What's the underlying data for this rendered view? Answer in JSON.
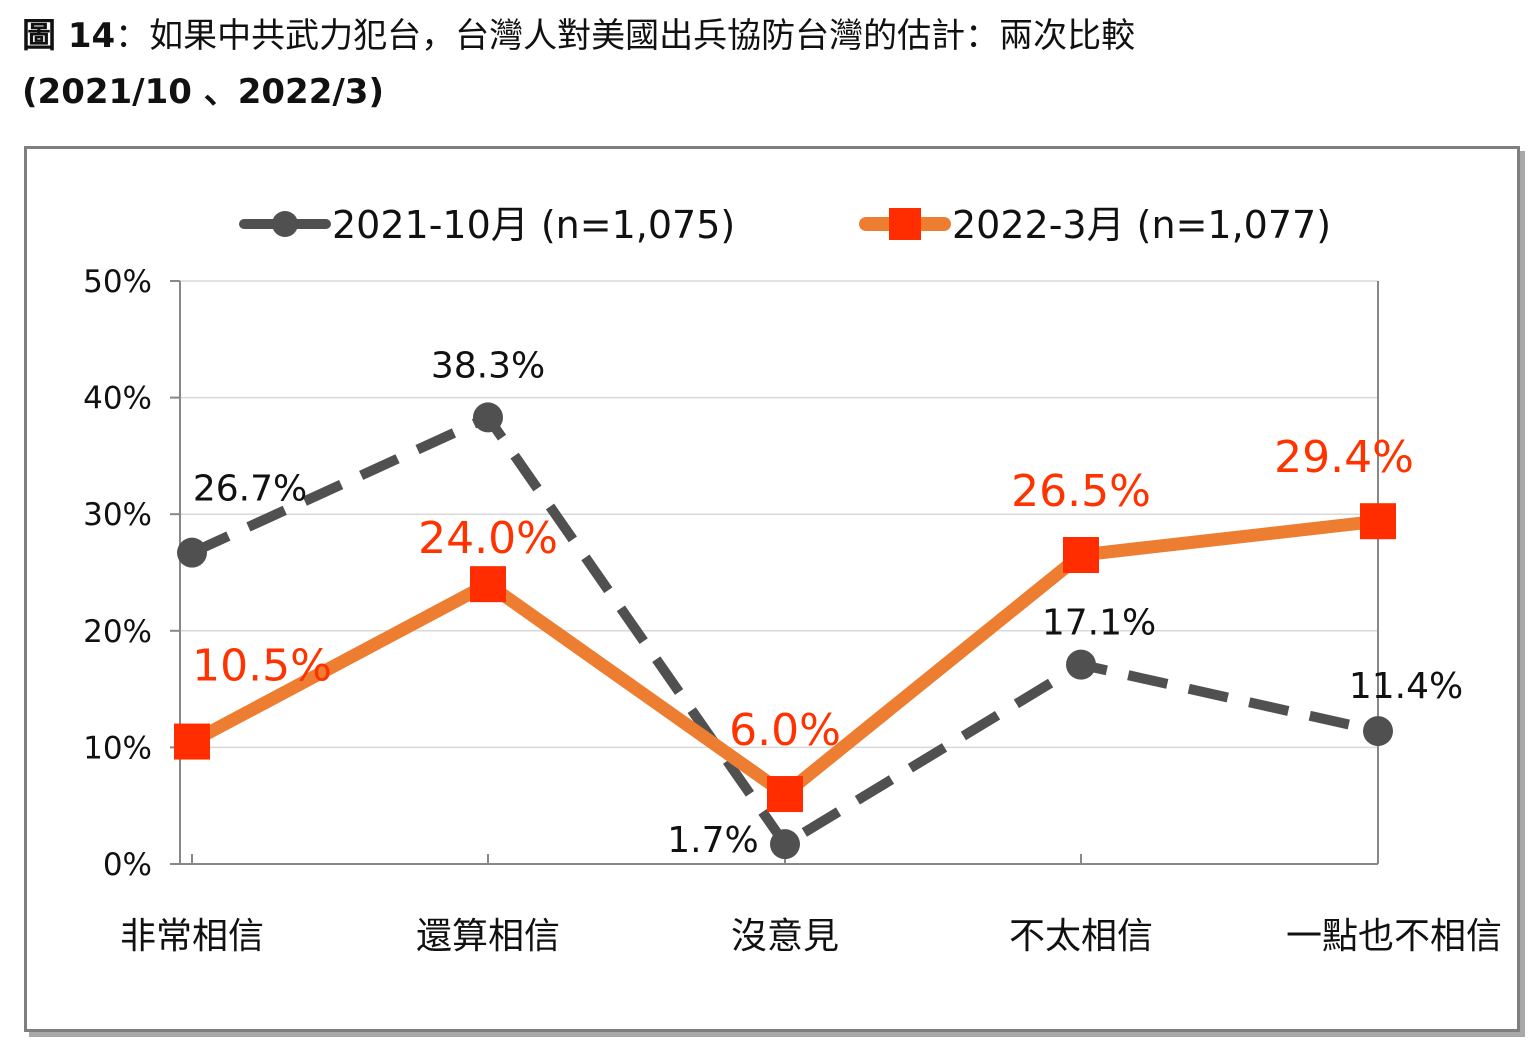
{
  "title": {
    "prefix": "圖 14",
    "text": "：如果中共武力犯台，台灣人對美國出兵協防台灣的估計：兩次比較",
    "dates": "(2021/10 、2022/3)"
  },
  "colors": {
    "series_2021": "#505050",
    "series_2022_line": "#ed7d31",
    "series_2022_marker": "#ff2d00",
    "series_2022_label": "#ff3300",
    "grid": "#d9d9d9",
    "axis": "#888888"
  },
  "chart_data": {
    "type": "line",
    "title": "如果中共武力犯台，台灣人對美國出兵協防台灣的估計：兩次比較",
    "xlabel": "",
    "ylabel": "",
    "ylim": [
      0,
      50
    ],
    "yticks": [
      0,
      10,
      20,
      30,
      40,
      50
    ],
    "ytick_labels": [
      "0%",
      "10%",
      "20%",
      "30%",
      "40%",
      "50%"
    ],
    "grid": true,
    "legend_position": "top",
    "categories": [
      "非常相信",
      "還算相信",
      "沒意見",
      "不太相信",
      "一點也不相信"
    ],
    "series": [
      {
        "name": "2021-10月",
        "n_label": "(n=1,075)",
        "style": "dashed",
        "marker": "circle",
        "values": [
          26.7,
          38.3,
          1.7,
          17.1,
          11.4
        ],
        "labels": [
          "26.7%",
          "38.3%",
          "1.7%",
          "17.1%",
          "11.4%"
        ]
      },
      {
        "name": "2022-3月",
        "n_label": "(n=1,077)",
        "style": "solid",
        "marker": "square",
        "values": [
          10.5,
          24.0,
          6.0,
          26.5,
          29.4
        ],
        "labels": [
          "10.5%",
          "24.0%",
          "6.0%",
          "26.5%",
          "29.4%"
        ]
      }
    ]
  }
}
